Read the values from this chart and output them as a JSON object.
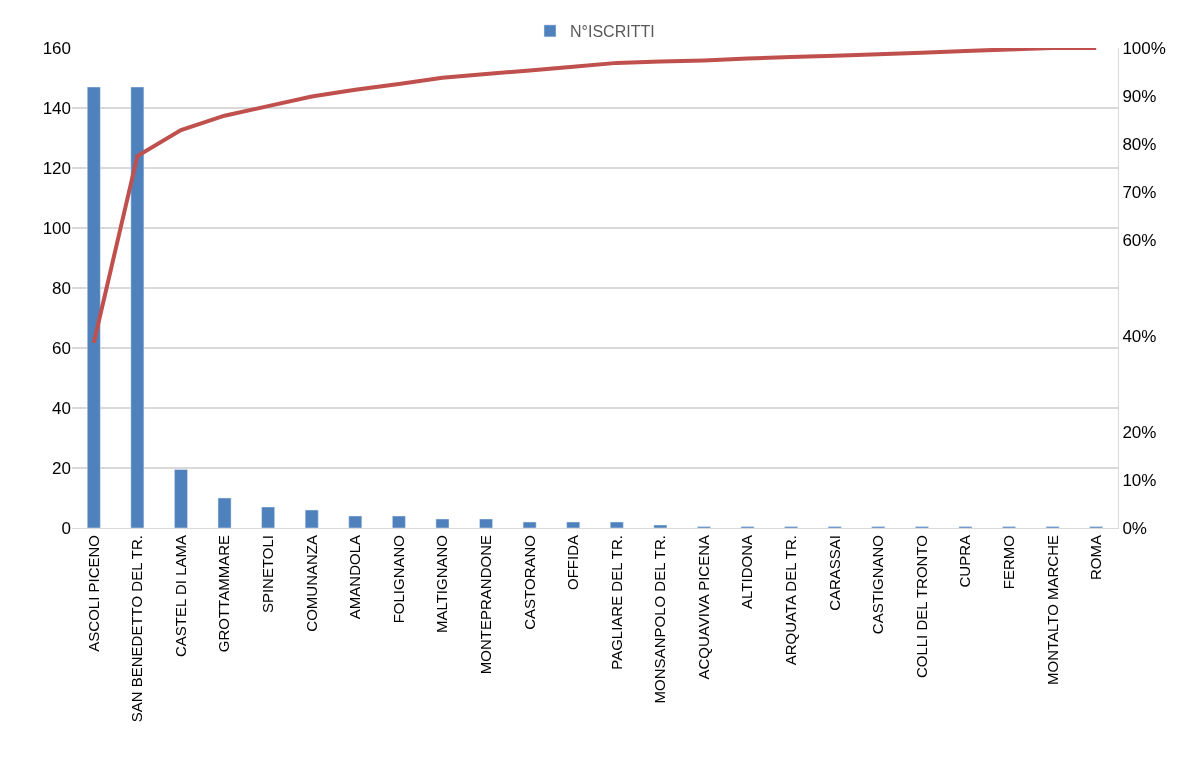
{
  "chart_data": {
    "type": "bar",
    "categories": [
      "ASCOLI PICENO",
      "SAN BENEDETTO DEL TR.",
      "CASTEL DI LAMA",
      "GROTTAMMARE",
      "SPINETOLI",
      "COMUNANZA",
      "AMANDOLA",
      "FOLIGNANO",
      "MALTIGNANO",
      "MONTEPRANDONE",
      "CASTORANO",
      "OFFIDA",
      "PAGLIARE DEL TR.",
      "MONSANPOLO DEL TR.",
      "ACQUAVIVA PICENA",
      "ALTIDONA",
      "ARQUATA DEL TR.",
      "CARASSAI",
      "CASTIGNANO",
      "COLLI DEL TRONTO",
      "CUPRA",
      "FERMO",
      "MONTALTO MARCHE",
      "ROMA"
    ],
    "series": [
      {
        "name": "N°ISCRITTI",
        "type": "bar",
        "color": "#4f81bd",
        "values": [
          147,
          147,
          19.5,
          10,
          7,
          6,
          4,
          4,
          3,
          3,
          2,
          2,
          2,
          1,
          0.5,
          0.5,
          0.5,
          0.5,
          0.5,
          0.5,
          0.5,
          0.5,
          0.5,
          0.5
        ]
      },
      {
        "type": "line",
        "axis": "y2",
        "color": "#c0504d",
        "values": [
          38.6,
          77.5,
          82.9,
          85.9,
          87.9,
          89.9,
          91.3,
          92.5,
          93.8,
          94.6,
          95.3,
          96.1,
          96.9,
          97.2,
          97.4,
          97.8,
          98.1,
          98.4,
          98.7,
          99.0,
          99.4,
          99.7,
          100,
          100
        ]
      }
    ],
    "ylim": [
      0,
      160
    ],
    "yticks": [
      0,
      20,
      40,
      60,
      80,
      100,
      120,
      140,
      160
    ],
    "y2lim": [
      0,
      100
    ],
    "y2ticks": [
      {
        "value": 0,
        "label": "0%"
      },
      {
        "value": 10,
        "label": "10%"
      },
      {
        "value": 20,
        "label": "20%"
      },
      {
        "value": 40,
        "label": "40%"
      },
      {
        "value": 60,
        "label": "60%"
      },
      {
        "value": 70,
        "label": "70%"
      },
      {
        "value": 80,
        "label": "80%"
      },
      {
        "value": 90,
        "label": "90%"
      },
      {
        "value": 100,
        "label": "100%"
      }
    ],
    "grid": "y",
    "legend": "top",
    "line_style": "solid",
    "marker": "none"
  }
}
